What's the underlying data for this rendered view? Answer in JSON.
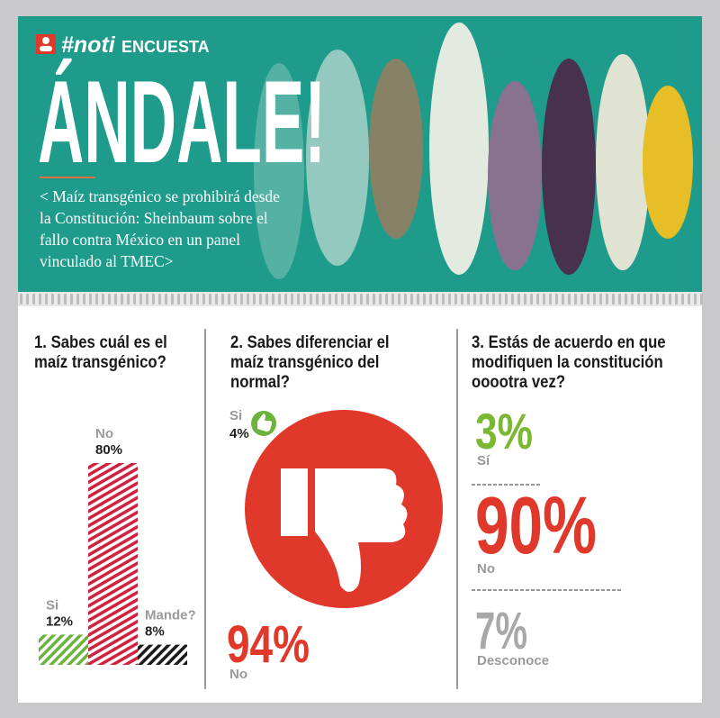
{
  "header": {
    "tag_prefix": "#noti",
    "tag_suffix": "ENCUESTA",
    "title": "ÁNDALE!",
    "subtitle": "< Maíz transgénico se prohibirá desde la Constitución: Sheinbaum sobre el fallo contra México en un panel vinculado al TMEC>"
  },
  "chart_data": [
    {
      "type": "bar",
      "title": "1. Sabes cuál es el maíz transgénico?",
      "categories": [
        "Si",
        "No",
        "Mande?"
      ],
      "values": [
        12,
        80,
        8
      ],
      "value_labels": [
        "12%",
        "80%",
        "8%"
      ],
      "colors": [
        "#6cb33e",
        "#d0223f",
        "#1a1a1a"
      ]
    },
    {
      "type": "thumbs",
      "title": "2. Sabes diferenciar el maíz transgénico del normal?",
      "categories": [
        "Si",
        "No"
      ],
      "values": [
        4,
        94
      ],
      "value_labels": [
        "4%",
        "94%"
      ],
      "colors": [
        "#6cb33e",
        "#e0392b"
      ]
    },
    {
      "type": "stats",
      "title": "3. Estás de acuerdo en que modifiquen la constitución ooootra vez?",
      "categories": [
        "Sí",
        "No",
        "Desconoce"
      ],
      "values": [
        3,
        90,
        7
      ],
      "value_labels": [
        "3%",
        "90%",
        "7%"
      ],
      "colors": [
        "#7ab833",
        "#e0392b",
        "#a8a8a8"
      ]
    }
  ]
}
